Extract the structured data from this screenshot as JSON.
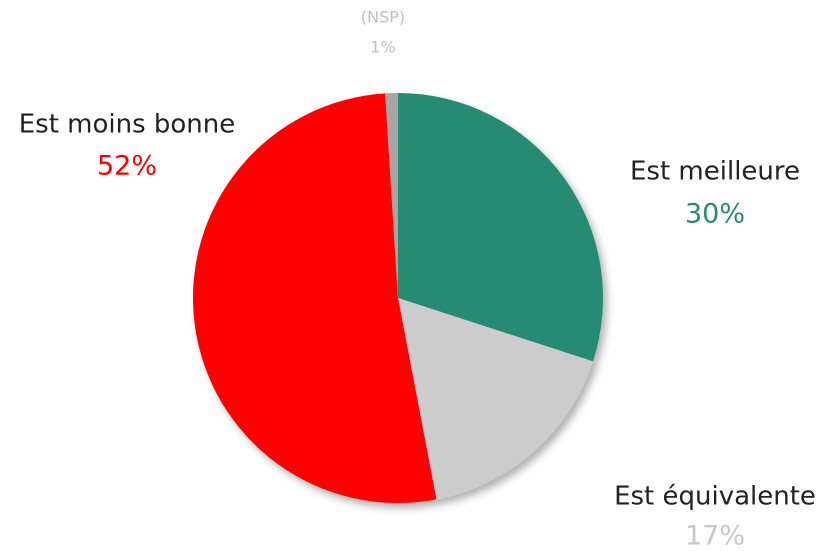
{
  "chart_data": {
    "type": "pie",
    "categories": [
      "Est meilleure",
      "Est équivalente",
      "Est moins bonne",
      "(NSP)"
    ],
    "values": [
      30,
      17,
      52,
      1
    ],
    "value_labels": [
      "30%",
      "17%",
      "52%",
      "1%"
    ],
    "colors": [
      "#268b73",
      "#cccccc",
      "#ff0000",
      "#a6a6a6"
    ],
    "label_colors": [
      "#268b73",
      "#c8c8c8",
      "#ff0000",
      "#bfbfbf"
    ],
    "name_colors": [
      "#222222",
      "#222222",
      "#222222",
      "#bfbfbf"
    ]
  }
}
